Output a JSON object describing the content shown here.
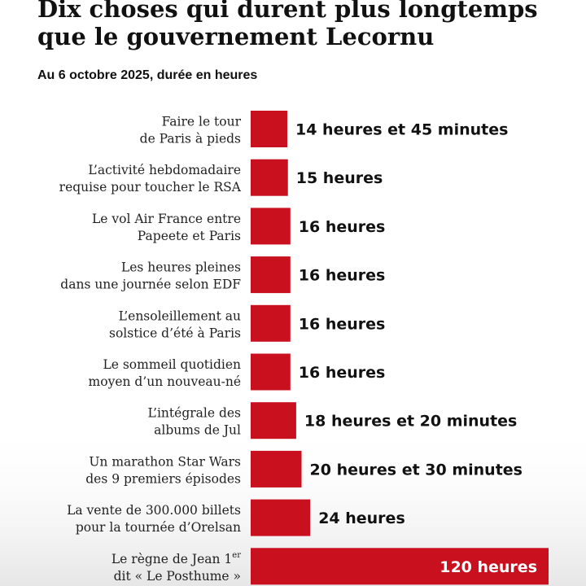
{
  "title_lines": [
    "Dix choses qui durent plus longtemps",
    "que le gouvernement Lecornu"
  ],
  "subtitle": "Au 6 octobre 2025, durée en heures",
  "colors": {
    "bar": "#c8101e",
    "background": "#ffffff",
    "fade": "#e6e6e6"
  },
  "chart_data": {
    "type": "bar",
    "orientation": "horizontal",
    "title": "Dix choses qui durent plus longtemps que le gouvernement Lecornu",
    "subtitle": "Au 6 octobre 2025, durée en heures",
    "categories": [
      [
        "Faire le tour",
        "de Paris à pieds"
      ],
      [
        "L’activité hebdomadaire",
        "requise pour toucher le RSA"
      ],
      [
        "Le vol Air France entre",
        "Papeete et Paris"
      ],
      [
        "Les heures pleines",
        "dans une journée selon EDF"
      ],
      [
        "L’ensoleillement au",
        "solstice d’été à Paris"
      ],
      [
        "Le sommeil quotidien",
        "moyen d’un nouveau-né"
      ],
      [
        "L’intégrale des",
        "albums de Jul"
      ],
      [
        "Un marathon Star Wars",
        "des 9 premiers épisodes"
      ],
      [
        "La vente de 300.000 billets",
        "pour la tournée d’Orelsan"
      ],
      [
        "Le règne de Jean 1|er",
        "dit « Le Posthume »"
      ]
    ],
    "values": [
      14.75,
      15,
      16,
      16,
      16,
      16,
      18.33,
      20.5,
      24,
      120
    ],
    "value_labels": [
      "14 heures et 45 minutes",
      "15 heures",
      "16 heures",
      "16 heures",
      "16 heures",
      "16 heures",
      "18 heures et 20 minutes",
      "20 heures et 30 minutes",
      "24 heures",
      "120 heures"
    ],
    "xlim": [
      0,
      120
    ],
    "grid": false,
    "legend": "none"
  }
}
